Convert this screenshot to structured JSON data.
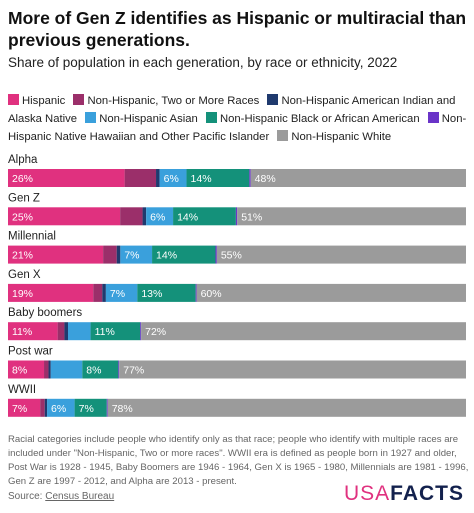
{
  "title": "More of Gen Z identifies as Hispanic or multiracial than previous generations.",
  "subtitle": "Share of population in each generation, by race or ethnicity, 2022",
  "legend": [
    {
      "label": "Hispanic",
      "color": "#e0317f"
    },
    {
      "label": "Non-Hispanic, Two or More Races",
      "color": "#9b2f6a"
    },
    {
      "label": "Non-Hispanic American Indian and Alaska Native",
      "color": "#1f3a6e"
    },
    {
      "label": "Non-Hispanic Asian",
      "color": "#3aa0dc"
    },
    {
      "label": "Non-Hispanic Black or African American",
      "color": "#14917a"
    },
    {
      "label": "Non-Hispanic Native Hawaiian and Other Pacific Islander",
      "color": "#6a34c8"
    },
    {
      "label": "Non-Hispanic White",
      "color": "#9b9b9b"
    }
  ],
  "chart_data": {
    "type": "bar",
    "orientation": "horizontal",
    "stacked": true,
    "xlim": [
      0,
      100
    ],
    "unit": "%",
    "categories": [
      "Alpha",
      "Gen Z",
      "Millennial",
      "Gen X",
      "Baby boomers",
      "Post war",
      "WWII"
    ],
    "series": [
      {
        "name": "Hispanic",
        "values": [
          26,
          25,
          21,
          19,
          11,
          8,
          7
        ]
      },
      {
        "name": "Non-Hispanic, Two or More Races",
        "values": [
          7,
          5,
          3,
          2,
          1.5,
          1,
          1
        ]
      },
      {
        "name": "Non-Hispanic American Indian and Alaska Native",
        "values": [
          0.8,
          0.8,
          0.8,
          0.8,
          0.8,
          0.5,
          0.5
        ]
      },
      {
        "name": "Non-Hispanic Asian",
        "values": [
          6,
          6,
          7,
          7,
          5,
          7,
          6
        ]
      },
      {
        "name": "Non-Hispanic Black or African American",
        "values": [
          14,
          14,
          14,
          13,
          11,
          8,
          7
        ]
      },
      {
        "name": "Non-Hispanic Native Hawaiian and Other Pacific Islander",
        "values": [
          0.3,
          0.3,
          0.3,
          0.2,
          0.2,
          0.2,
          0.2
        ]
      },
      {
        "name": "Non-Hispanic White",
        "values": [
          48,
          51,
          55,
          60,
          72,
          77,
          78
        ]
      }
    ],
    "data_labels": [
      [
        "26%",
        "",
        "",
        "6%",
        "14%",
        "",
        "48%"
      ],
      [
        "25%",
        "",
        "",
        "6%",
        "14%",
        "",
        "51%"
      ],
      [
        "21%",
        "",
        "",
        "7%",
        "14%",
        "",
        "55%"
      ],
      [
        "19%",
        "",
        "",
        "7%",
        "13%",
        "",
        "60%"
      ],
      [
        "11%",
        "",
        "",
        "",
        "11%",
        "",
        "72%"
      ],
      [
        "8%",
        "",
        "",
        "",
        "8%",
        "",
        "77%"
      ],
      [
        "7%",
        "",
        "",
        "6%",
        "7%",
        "",
        "78%"
      ]
    ]
  },
  "footnote": "Racial categories include people who identify only as that race; people who identify with multiple races are included under \"Non-Hispanic, Two or more races\". WWII era is defined as people born in 1927 and older, Post War is 1928 - 1945, Baby Boomers are 1946 - 1964, Gen X is 1965 - 1980, Millennials are 1981 - 1996, Gen Z are 1997 - 2012, and Alpha are 2013 - present.",
  "source": {
    "prefix": "Source: ",
    "link": "Census Bureau"
  },
  "logo": {
    "usa": "USA",
    "facts": "FACTS"
  }
}
